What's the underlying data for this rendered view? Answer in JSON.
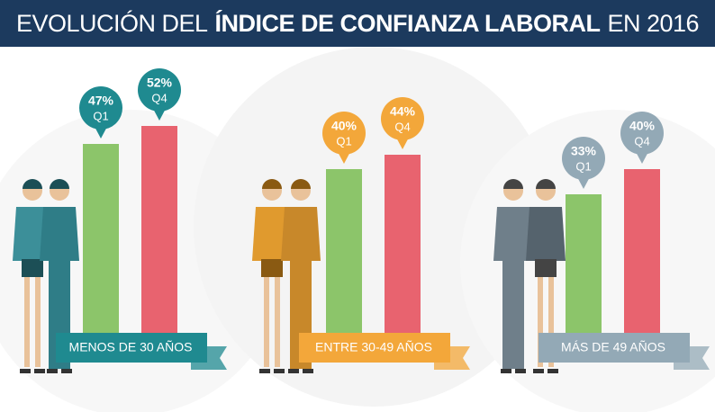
{
  "chart_data": {
    "type": "bar",
    "title": [
      "EVOLUCIÓN DEL",
      "ÍNDICE DE CONFIANZA LABORAL",
      "EN 2016"
    ],
    "categories": [
      "MENOS DE 30 AÑOS",
      "ENTRE 30-49 AÑOS",
      "MÁS DE 49 AÑOS"
    ],
    "group_colors": [
      "#1f8a90",
      "#f3a73a",
      "#93a9b6"
    ],
    "series": [
      {
        "name": "Q1",
        "color": "#8cc56a",
        "values": [
          47,
          40,
          33
        ],
        "value_labels": [
          "47%",
          "40%",
          "33%"
        ]
      },
      {
        "name": "Q4",
        "color": "#e8636f",
        "values": [
          52,
          44,
          40
        ],
        "value_labels": [
          "52%",
          "44%",
          "40%"
        ]
      }
    ]
  }
}
